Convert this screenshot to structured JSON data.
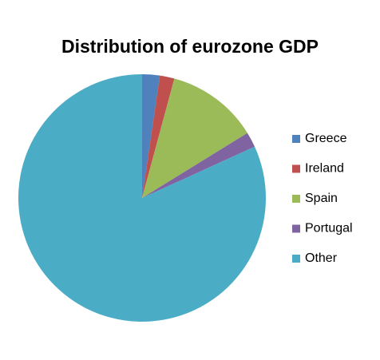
{
  "chart_data": {
    "type": "pie",
    "title": "Distribution of eurozone GDP",
    "categories": [
      "Greece",
      "Ireland",
      "Spain",
      "Portugal",
      "Other"
    ],
    "values": [
      2.3,
      1.9,
      12,
      2,
      81.8
    ],
    "colors": [
      "#4f81bd",
      "#c0504d",
      "#9bbb59",
      "#8064a2",
      "#4bacc6"
    ],
    "legend": "right"
  }
}
